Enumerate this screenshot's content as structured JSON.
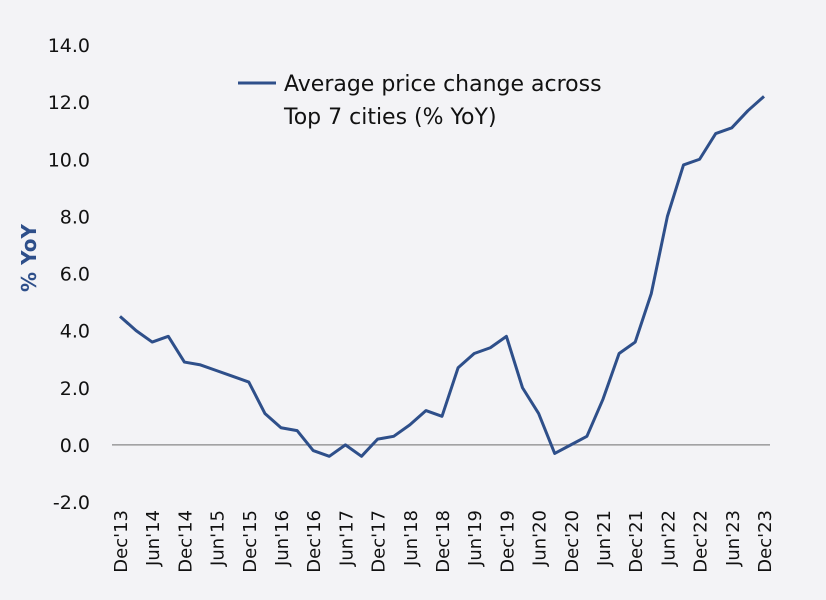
{
  "chart_data": {
    "type": "line",
    "title": "",
    "xlabel": "",
    "ylabel": "% YoY",
    "ylim": [
      -2.0,
      14.0
    ],
    "yticks": [
      "14.0",
      "12.0",
      "10.0",
      "8.0",
      "6.0",
      "4.0",
      "2.0",
      "0.0",
      "-2.0"
    ],
    "x_tick_labels": [
      "Dec'13",
      "Jun'14",
      "Dec'14",
      "Jun'15",
      "Dec'15",
      "Jun'16",
      "Dec'16",
      "Jun'17",
      "Dec'17",
      "Jun'18",
      "Dec'18",
      "Jun'19",
      "Dec'19",
      "Jun'20",
      "Dec'20",
      "Jun'21",
      "Dec'21",
      "Jun'22",
      "Dec'22",
      "Jun'23",
      "Dec'23"
    ],
    "x_unit": "quarter",
    "grid": false,
    "zero_line": true,
    "legend": {
      "placement": "top-center",
      "lines": [
        "Average price change across",
        "Top 7 cities (% YoY)"
      ]
    },
    "colors": {
      "series": "#2e4f8a",
      "ylabel": "#2e4f8a",
      "axis": "#888888"
    },
    "series": [
      {
        "name": "Average price change across Top 7 cities (% YoY)",
        "x": [
          "Dec'13",
          "Mar'14",
          "Jun'14",
          "Sep'14",
          "Dec'14",
          "Mar'15",
          "Jun'15",
          "Sep'15",
          "Dec'15",
          "Mar'16",
          "Jun'16",
          "Sep'16",
          "Dec'16",
          "Mar'17",
          "Jun'17",
          "Sep'17",
          "Dec'17",
          "Mar'18",
          "Jun'18",
          "Sep'18",
          "Dec'18",
          "Mar'19",
          "Jun'19",
          "Sep'19",
          "Dec'19",
          "Mar'20",
          "Jun'20",
          "Sep'20",
          "Dec'20",
          "Mar'21",
          "Jun'21",
          "Sep'21",
          "Dec'21",
          "Mar'22",
          "Jun'22",
          "Sep'22",
          "Dec'22",
          "Mar'23",
          "Jun'23",
          "Sep'23",
          "Dec'23"
        ],
        "values": [
          4.5,
          4.0,
          3.6,
          3.8,
          2.9,
          2.8,
          2.6,
          2.4,
          2.2,
          1.1,
          0.6,
          0.5,
          -0.2,
          -0.4,
          0.0,
          -0.4,
          0.2,
          0.3,
          0.7,
          1.2,
          1.0,
          2.7,
          3.2,
          3.4,
          3.8,
          2.0,
          1.1,
          -0.3,
          0.0,
          0.3,
          1.6,
          3.2,
          3.6,
          5.3,
          8.0,
          9.8,
          10.0,
          10.9,
          11.1,
          11.7,
          12.2
        ]
      }
    ]
  }
}
